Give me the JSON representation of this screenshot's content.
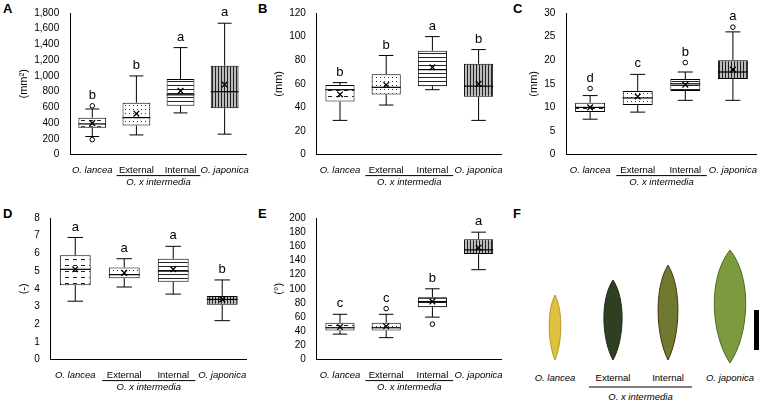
{
  "chart_data": [
    {
      "type": "box",
      "title": "A",
      "y_label": "(mm²)",
      "categories": [
        "O. lancea",
        "External",
        "Internal",
        "O. japonica"
      ],
      "category_groups": [
        {
          "label": "O. x intermedia",
          "categories": [
            "External",
            "Internal"
          ]
        }
      ],
      "boxes": [
        {
          "min": 230,
          "q1": 340,
          "median": 390,
          "q3": 470,
          "max": 580,
          "mean": 400,
          "outliers": [
            620,
            190
          ]
        },
        {
          "min": 250,
          "q1": 370,
          "median": 470,
          "q3": 660,
          "max": 1000,
          "mean": 520,
          "outliers": []
        },
        {
          "min": 530,
          "q1": 620,
          "median": 760,
          "q3": 960,
          "max": 1360,
          "mean": 810,
          "outliers": []
        },
        {
          "min": 260,
          "q1": 590,
          "median": 800,
          "q3": 1130,
          "max": 1670,
          "mean": 890,
          "outliers": []
        }
      ],
      "letters": [
        "b",
        "b",
        "a",
        "a"
      ],
      "ylim": [
        0,
        1800
      ],
      "yticks": [
        0,
        200,
        400,
        600,
        800,
        {
          "value": 1000,
          "label": "1,000"
        },
        {
          "value": 1200,
          "label": "1,200"
        },
        {
          "value": 1400,
          "label": "1,400"
        },
        {
          "value": 1600,
          "label": "1,600"
        },
        {
          "value": 1800,
          "label": "1,800"
        }
      ],
      "grid": false
    },
    {
      "type": "box",
      "title": "B",
      "y_label": "(mm)",
      "categories": [
        "O. lancea",
        "External",
        "Internal",
        "O. japonica"
      ],
      "category_groups": [
        {
          "label": "O. x intermedia",
          "categories": [
            "External",
            "Internal"
          ]
        }
      ],
      "boxes": [
        {
          "min": 29,
          "q1": 45,
          "median": 55,
          "q3": 59,
          "max": 61,
          "mean": 51,
          "outliers": []
        },
        {
          "min": 42,
          "q1": 51,
          "median": 57,
          "q3": 68,
          "max": 84,
          "mean": 59,
          "outliers": []
        },
        {
          "min": 55,
          "q1": 58,
          "median": 72,
          "q3": 88,
          "max": 100,
          "mean": 74,
          "outliers": []
        },
        {
          "min": 29,
          "q1": 49,
          "median": 58,
          "q3": 77,
          "max": 89,
          "mean": 60,
          "outliers": []
        }
      ],
      "letters": [
        "b",
        "b",
        "a",
        "b"
      ],
      "ylim": [
        0,
        120
      ],
      "yticks": [
        0,
        20,
        40,
        60,
        80,
        100,
        120
      ],
      "grid": false
    },
    {
      "type": "box",
      "title": "C",
      "y_label": "(mm)",
      "categories": [
        "O. lancea",
        "External",
        "Internal",
        "O. japonica"
      ],
      "category_groups": [
        {
          "label": "O. x intermedia",
          "categories": [
            "External",
            "Internal"
          ]
        }
      ],
      "boxes": [
        {
          "min": 7.5,
          "q1": 9,
          "median": 10,
          "q3": 11,
          "max": 12.5,
          "mean": 10,
          "outliers": [
            14
          ]
        },
        {
          "min": 9,
          "q1": 10.5,
          "median": 12,
          "q3": 13.5,
          "max": 17,
          "mean": 12.3,
          "outliers": []
        },
        {
          "min": 11.5,
          "q1": 13.5,
          "median": 15,
          "q3": 16,
          "max": 17.5,
          "mean": 14.8,
          "outliers": [
            19.5
          ]
        },
        {
          "min": 11.5,
          "q1": 16,
          "median": 17.5,
          "q3": 20,
          "max": 26,
          "mean": 18,
          "outliers": [
            27
          ]
        }
      ],
      "letters": [
        "d",
        "c",
        "b",
        "a"
      ],
      "ylim": [
        0,
        30
      ],
      "yticks": [
        0,
        5,
        10,
        15,
        20,
        25,
        30
      ],
      "grid": false
    },
    {
      "type": "box",
      "title": "D",
      "y_label": "(-)",
      "categories": [
        "O. lancea",
        "External",
        "Internal",
        "O. japonica"
      ],
      "category_groups": [
        {
          "label": "O. x intermedia",
          "categories": [
            "External",
            "Internal"
          ]
        }
      ],
      "boxes": [
        {
          "min": 3.3,
          "q1": 4.2,
          "median": 5.1,
          "q3": 5.9,
          "max": 6.9,
          "mean": 5.1,
          "outliers": []
        },
        {
          "min": 4.1,
          "q1": 4.6,
          "median": 4.8,
          "q3": 5.2,
          "max": 5.7,
          "mean": 4.9,
          "outliers": []
        },
        {
          "min": 3.7,
          "q1": 4.4,
          "median": 5.0,
          "q3": 5.7,
          "max": 6.4,
          "mean": 5.1,
          "outliers": []
        },
        {
          "min": 2.2,
          "q1": 3.1,
          "median": 3.4,
          "q3": 3.6,
          "max": 4.5,
          "mean": 3.4,
          "outliers": []
        }
      ],
      "letters": [
        "a",
        "a",
        "a",
        "b"
      ],
      "ylim": [
        0,
        8
      ],
      "yticks": [
        0,
        1,
        2,
        3,
        4,
        5,
        6,
        7,
        8
      ],
      "grid": false
    },
    {
      "type": "box",
      "title": "E",
      "y_label": "(°)",
      "categories": [
        "O. lancea",
        "External",
        "Internal",
        "O. japonica"
      ],
      "category_groups": [
        {
          "label": "O. x intermedia",
          "categories": [
            "External",
            "Internal"
          ]
        }
      ],
      "boxes": [
        {
          "min": 36,
          "q1": 41,
          "median": 45,
          "q3": 52,
          "max": 64,
          "mean": 46,
          "outliers": []
        },
        {
          "min": 31,
          "q1": 41,
          "median": 45,
          "q3": 52,
          "max": 64,
          "mean": 47,
          "outliers": [
            72
          ]
        },
        {
          "min": 60,
          "q1": 74,
          "median": 82,
          "q3": 88,
          "max": 100,
          "mean": 82,
          "outliers": [
            50
          ]
        },
        {
          "min": 127,
          "q1": 149,
          "median": 155,
          "q3": 170,
          "max": 180,
          "mean": 158,
          "outliers": []
        }
      ],
      "letters": [
        "c",
        "c",
        "b",
        "a"
      ],
      "ylim": [
        0,
        200
      ],
      "yticks": [
        0,
        20,
        40,
        60,
        80,
        100,
        120,
        140,
        160,
        180,
        200
      ],
      "grid": false
    }
  ],
  "image": {
    "title": "F",
    "labels": [
      "O. lancea",
      "External",
      "Internal",
      "O. japonica"
    ],
    "category_groups": [
      {
        "label": "O. x intermedia",
        "categories": [
          "External",
          "Internal"
        ]
      }
    ]
  }
}
